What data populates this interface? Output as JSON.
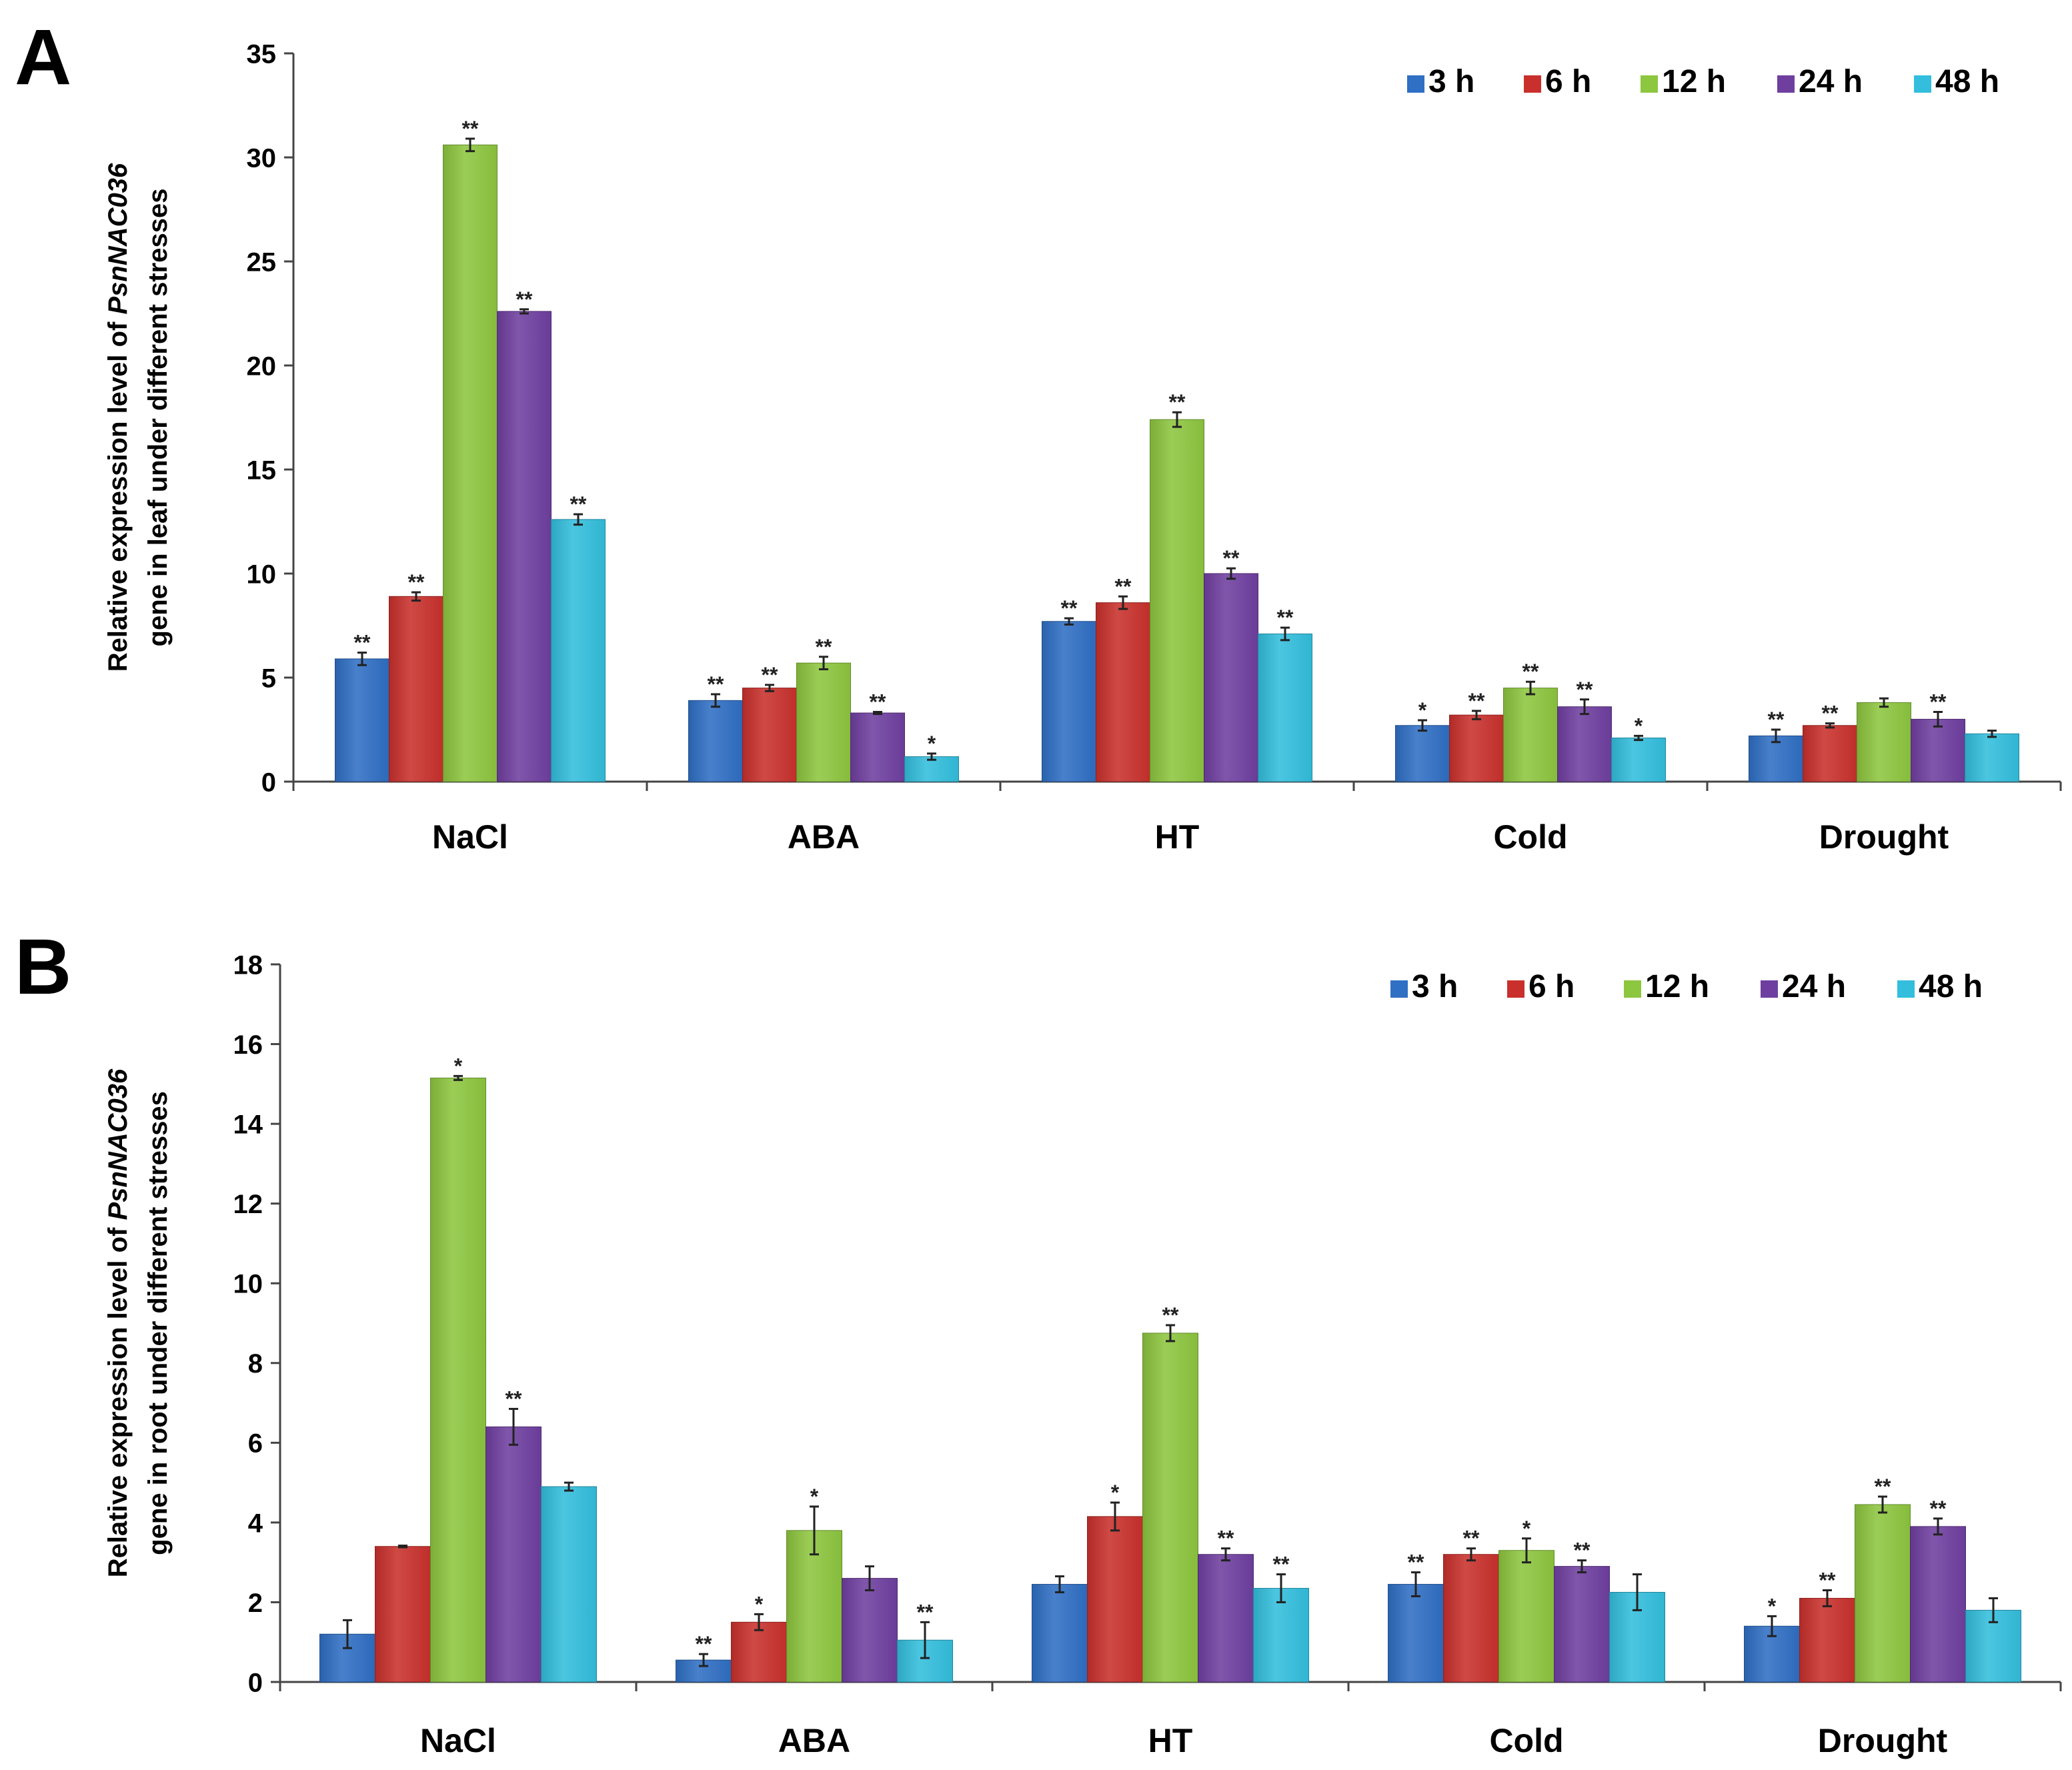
{
  "chart_data": [
    {
      "panel": "A",
      "type": "bar",
      "ylabel_prefix": "Relative expression level of ",
      "ylabel_gene": "PsnNAC036",
      "ylabel_line2": "gene in leaf under different stresses",
      "xlabel": "",
      "ylim": [
        0,
        35
      ],
      "yticks": [
        0,
        5,
        10,
        15,
        20,
        25,
        30,
        35
      ],
      "categories": [
        "NaCl",
        "ABA",
        "HT",
        "Cold",
        "Drought"
      ],
      "series": [
        {
          "name": "3 h",
          "color": "#2F6FC4",
          "values": [
            5.9,
            3.9,
            7.7,
            2.7,
            2.2
          ],
          "errors": [
            0.3,
            0.3,
            0.15,
            0.25,
            0.3
          ],
          "sig": [
            "**",
            "**",
            "**",
            "*",
            "**"
          ]
        },
        {
          "name": "6 h",
          "color": "#C9302C",
          "values": [
            8.9,
            4.5,
            8.6,
            3.2,
            2.7
          ],
          "errors": [
            0.2,
            0.15,
            0.3,
            0.2,
            0.1
          ],
          "sig": [
            "**",
            "**",
            "**",
            "**",
            "**"
          ]
        },
        {
          "name": "12 h",
          "color": "#8DC63F",
          "values": [
            30.6,
            5.7,
            17.4,
            4.5,
            3.8
          ],
          "errors": [
            0.3,
            0.3,
            0.35,
            0.3,
            0.2
          ],
          "sig": [
            "**",
            "**",
            "**",
            "**",
            ""
          ]
        },
        {
          "name": "24 h",
          "color": "#6F3FA0",
          "values": [
            22.6,
            3.3,
            10.0,
            3.6,
            3.0
          ],
          "errors": [
            0.1,
            0.05,
            0.25,
            0.35,
            0.35
          ],
          "sig": [
            "**",
            "**",
            "**",
            "**",
            "**"
          ]
        },
        {
          "name": "48 h",
          "color": "#33BEDD",
          "values": [
            12.6,
            1.2,
            7.1,
            2.1,
            2.3
          ],
          "errors": [
            0.25,
            0.15,
            0.3,
            0.1,
            0.15
          ],
          "sig": [
            "**",
            "*",
            "**",
            "*",
            ""
          ]
        }
      ]
    },
    {
      "panel": "B",
      "type": "bar",
      "ylabel_prefix": "Relative expression level of ",
      "ylabel_gene": "PsnNAC036",
      "ylabel_line2": "gene in root under different stresses",
      "xlabel": "",
      "ylim": [
        0,
        18
      ],
      "yticks": [
        0,
        2,
        4,
        6,
        8,
        10,
        12,
        14,
        16,
        18
      ],
      "categories": [
        "NaCl",
        "ABA",
        "HT",
        "Cold",
        "Drought"
      ],
      "series": [
        {
          "name": "3 h",
          "color": "#2F6FC4",
          "values": [
            1.2,
            0.55,
            2.45,
            2.45,
            1.4
          ],
          "errors": [
            0.35,
            0.15,
            0.2,
            0.3,
            0.25
          ],
          "sig": [
            "",
            "**",
            "",
            "**",
            "*"
          ]
        },
        {
          "name": "6 h",
          "color": "#C9302C",
          "values": [
            3.4,
            1.5,
            4.15,
            3.2,
            2.1
          ],
          "errors": [
            0.02,
            0.2,
            0.35,
            0.15,
            0.2
          ],
          "sig": [
            "",
            "*",
            "*",
            "**",
            "**"
          ]
        },
        {
          "name": "12 h",
          "color": "#8DC63F",
          "values": [
            15.15,
            3.8,
            8.75,
            3.3,
            4.45
          ],
          "errors": [
            0.05,
            0.6,
            0.2,
            0.3,
            0.2
          ],
          "sig": [
            "*",
            "*",
            "**",
            "*",
            "**"
          ]
        },
        {
          "name": "24 h",
          "color": "#6F3FA0",
          "values": [
            6.4,
            2.6,
            3.2,
            2.9,
            3.9
          ],
          "errors": [
            0.45,
            0.3,
            0.15,
            0.15,
            0.2
          ],
          "sig": [
            "**",
            "",
            "**",
            "**",
            "**"
          ]
        },
        {
          "name": "48 h",
          "color": "#33BEDD",
          "values": [
            4.9,
            1.05,
            2.35,
            2.25,
            1.8
          ],
          "errors": [
            0.1,
            0.45,
            0.35,
            0.45,
            0.3
          ],
          "sig": [
            "",
            "**",
            "**",
            "",
            ""
          ]
        }
      ]
    }
  ],
  "panel_labels": {
    "a": "A",
    "b": "B"
  }
}
